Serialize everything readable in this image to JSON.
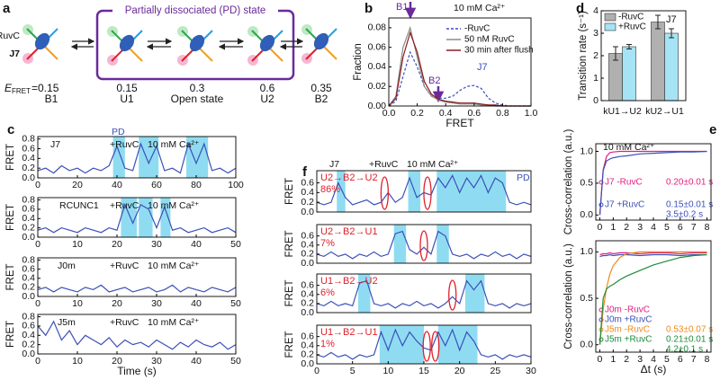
{
  "diagram": {
    "panel": "a",
    "title": "Partially dissociated (PD) state",
    "protein": "RuvC",
    "junction": "J7",
    "energy_symbol": "E",
    "energy_subscript": "FRET",
    "states": [
      {
        "efret": "=0.15",
        "name": "B1"
      },
      {
        "efret": "0.15",
        "name": "U1"
      },
      {
        "efret": "0.3",
        "name": "Open state"
      },
      {
        "efret": "0.6",
        "name": "U2"
      },
      {
        "efret": "0.35",
        "name": "B2"
      }
    ]
  },
  "chart_data": [
    {
      "type": "line",
      "panel": "b",
      "buffer": "10 mM Ca²⁺",
      "annotations": [
        "B1",
        "B2",
        "J7"
      ],
      "xlabel": "FRET",
      "ylabel": "Fraction",
      "x": [
        0,
        0.05,
        0.1,
        0.15,
        0.2,
        0.25,
        0.3,
        0.35,
        0.4,
        0.45,
        0.5,
        0.55,
        0.6,
        0.65,
        0.7,
        0.75,
        0.8,
        0.85,
        0.9,
        0.95,
        1
      ],
      "series": [
        {
          "name": "-RuvC",
          "color": "#3a4fc0",
          "dash": true,
          "values": [
            0,
            0.005,
            0.03,
            0.055,
            0.04,
            0.02,
            0.01,
            0.008,
            0.008,
            0.01,
            0.016,
            0.02,
            0.021,
            0.018,
            0.008,
            0.003,
            0.001,
            0,
            0,
            0,
            0
          ]
        },
        {
          "name": "50 nM RuvC",
          "color": "#8a8a8a",
          "values": [
            0,
            0.01,
            0.06,
            0.08,
            0.05,
            0.02,
            0.01,
            0.006,
            0.004,
            0.003,
            0.002,
            0.002,
            0.002,
            0.001,
            0.001,
            0,
            0,
            0,
            0,
            0,
            0
          ]
        },
        {
          "name": "30 min after flush",
          "color": "#8b1a1a",
          "values": [
            0,
            0.008,
            0.05,
            0.075,
            0.055,
            0.025,
            0.012,
            0.007,
            0.005,
            0.004,
            0.003,
            0.003,
            0.003,
            0.002,
            0.001,
            0.001,
            0,
            0,
            0,
            0,
            0
          ]
        }
      ],
      "xlim": [
        0,
        1
      ],
      "xticks": [
        {
          "value": 0,
          "label": "0.0"
        },
        0.2,
        0.4,
        0.6,
        0.8,
        {
          "value": 1,
          "label": "1.0"
        }
      ],
      "ylim": [
        0,
        0.09
      ],
      "yticks": [
        {
          "value": 0,
          "label": "0.00"
        },
        0.02,
        0.04,
        0.06,
        0.08
      ]
    },
    {
      "type": "bar",
      "panel": "d",
      "annotations": [
        "J7"
      ],
      "ylabel": "Transition rate (s⁻¹)",
      "categories": [
        "kU1→U2",
        "kU2→U1"
      ],
      "series": [
        {
          "name": "-RuvC",
          "color": "#b0b0b0",
          "values": [
            2.1,
            3.5
          ],
          "errors": [
            0.3,
            0.3
          ]
        },
        {
          "name": "+RuvC",
          "color": "#a6e3f5",
          "values": [
            2.4,
            3.0
          ],
          "errors": [
            0.1,
            0.2
          ]
        }
      ],
      "ylim": [
        0,
        4
      ],
      "yticks": [
        0,
        1,
        2,
        3,
        4
      ]
    },
    {
      "type": "line",
      "panel": "c",
      "title": "J7",
      "condition": "+RuvC",
      "buffer": "10 mM Ca²⁺",
      "pd_label": "PD",
      "ylabel": "FRET",
      "x": [
        0,
        4,
        8,
        12,
        16,
        20,
        24,
        28,
        32,
        36,
        40,
        44,
        48,
        52,
        56,
        60,
        64,
        68,
        72,
        76,
        80,
        84,
        88,
        92,
        96,
        100
      ],
      "series": [
        {
          "color": "#3b4fb8",
          "values": [
            0.15,
            0.2,
            0.1,
            0.25,
            0.15,
            0.2,
            0.1,
            0.2,
            0.15,
            0.25,
            0.65,
            0.2,
            0.15,
            0.7,
            0.3,
            0.65,
            0.15,
            0.2,
            0.1,
            0.7,
            0.3,
            0.7,
            0.15,
            0.2,
            0.1,
            0.2
          ]
        }
      ],
      "shaded": [
        [
          38,
          44
        ],
        [
          51,
          61
        ],
        [
          75,
          86
        ]
      ],
      "xlim": [
        0,
        100
      ],
      "xticks": [
        0,
        20,
        40,
        60,
        80,
        100
      ],
      "ylim": [
        0,
        0.85
      ],
      "yticks": [
        {
          "value": 0,
          "label": "0.0"
        },
        0.2,
        0.4,
        0.6,
        0.8
      ]
    },
    {
      "type": "line",
      "title": "RCUNC1",
      "condition": "+RuvC",
      "buffer": "10 mM Ca²⁺",
      "ylabel": "FRET",
      "x": [
        0,
        2,
        4,
        6,
        8,
        10,
        12,
        14,
        16,
        18,
        20,
        22,
        24,
        26,
        28,
        30,
        32,
        34,
        36,
        38,
        40,
        42,
        44,
        46,
        48,
        50
      ],
      "series": [
        {
          "color": "#3b4fb8",
          "values": [
            0.15,
            0.2,
            0.1,
            0.2,
            0.15,
            0.1,
            0.2,
            0.15,
            0.1,
            0.2,
            0.15,
            0.7,
            0.3,
            0.7,
            0.6,
            0.2,
            0.65,
            0.15,
            0.2,
            0.1,
            0.15,
            0.2,
            0.1,
            0.15,
            0.2,
            0.1
          ]
        }
      ],
      "shaded": [
        [
          21,
          25
        ],
        [
          25.5,
          29
        ],
        [
          31,
          33.5
        ]
      ],
      "xlim": [
        0,
        50
      ],
      "xticks": [
        0,
        10,
        20,
        30,
        40,
        50
      ],
      "ylim": [
        0,
        0.85
      ],
      "yticks": [
        {
          "value": 0,
          "label": "0.0"
        },
        0.2,
        0.4,
        0.6,
        0.8
      ]
    },
    {
      "type": "line",
      "title": "J0m",
      "condition": "+RuvC",
      "buffer": "10 mM Ca²⁺",
      "ylabel": "FRET",
      "x": [
        0,
        2,
        4,
        6,
        8,
        10,
        12,
        14,
        16,
        18,
        20,
        22,
        24,
        26,
        28,
        30,
        32,
        34,
        36,
        38,
        40,
        42,
        44,
        46,
        48,
        50
      ],
      "series": [
        {
          "color": "#3b4fb8",
          "values": [
            0.15,
            0.2,
            0.1,
            0.2,
            0.15,
            0.1,
            0.2,
            0.15,
            0.25,
            0.1,
            0.15,
            0.2,
            0.1,
            0.15,
            0.2,
            0.1,
            0.15,
            0.25,
            0.1,
            0.2,
            0.15,
            0.1,
            0.2,
            0.15,
            0.1,
            0.2
          ]
        }
      ],
      "xlim": [
        0,
        50
      ],
      "xticks": [
        0,
        10,
        20,
        30,
        40,
        50
      ],
      "ylim": [
        0,
        0.85
      ],
      "yticks": [
        {
          "value": 0,
          "label": "0.0"
        },
        0.2,
        0.4,
        0.6,
        0.8
      ]
    },
    {
      "type": "line",
      "title": "J5m",
      "condition": "+RuvC",
      "buffer": "10 mM Ca²⁺",
      "ylabel": "FRET",
      "xlabel": "Time (s)",
      "x": [
        0,
        2,
        4,
        6,
        8,
        10,
        12,
        14,
        16,
        18,
        20,
        22,
        24,
        26,
        28,
        30,
        32,
        34,
        36,
        38,
        40,
        42,
        44,
        46,
        48,
        50
      ],
      "series": [
        {
          "color": "#3b4fb8",
          "values": [
            0.6,
            0.4,
            0.7,
            0.3,
            0.5,
            0.2,
            0.4,
            0.3,
            0.2,
            0.35,
            0.15,
            0.3,
            0.2,
            0.25,
            0.15,
            0.3,
            0.2,
            0.1,
            0.25,
            0.15,
            0.3,
            0.2,
            0.15,
            0.25,
            0.1,
            0.2
          ]
        }
      ],
      "xlim": [
        0,
        50
      ],
      "xticks": [
        0,
        10,
        20,
        30,
        40,
        50
      ],
      "ylim": [
        0,
        0.85
      ],
      "yticks": [
        {
          "value": 0,
          "label": "0.0"
        },
        0.2,
        0.4,
        0.6,
        0.8
      ]
    },
    {
      "type": "line",
      "panel": "f",
      "title": "J7",
      "condition": "+RuvC",
      "buffer": "10 mM Ca²⁺",
      "pd_label": "PD",
      "pathway": "U2→B2→U2",
      "percent": "86%",
      "ylabel": "FRET",
      "x": [
        0,
        1,
        2,
        3,
        4,
        5,
        6,
        7,
        8,
        9,
        10,
        11,
        12,
        13,
        14,
        15,
        16,
        17,
        18,
        19,
        20,
        21,
        22,
        23,
        24,
        25,
        26,
        27,
        28,
        29,
        30
      ],
      "series": [
        {
          "color": "#3b4fb8",
          "values": [
            0.2,
            0.15,
            0.2,
            0.6,
            0.3,
            0.15,
            0.2,
            0.25,
            0.15,
            0.2,
            0.4,
            0.2,
            0.3,
            0.7,
            0.3,
            0.4,
            0.35,
            0.7,
            0.5,
            0.75,
            0.4,
            0.7,
            0.5,
            0.75,
            0.4,
            0.7,
            0.6,
            0.2,
            0.15,
            0.2,
            0.15
          ]
        }
      ],
      "shaded": [
        [
          2.8,
          4
        ],
        [
          12.8,
          14.5
        ],
        [
          16.8,
          26.5
        ]
      ],
      "transitions": [
        9.5,
        15.5
      ],
      "xlim": [
        0,
        30
      ],
      "ylim": [
        0,
        0.85
      ],
      "yticks": [
        {
          "value": 0,
          "label": "0.0"
        },
        0.2,
        0.4,
        0.6
      ]
    },
    {
      "type": "line",
      "pathway": "U2→B2→U1",
      "percent": "7%",
      "ylabel": "FRET",
      "x": [
        0,
        1,
        2,
        3,
        4,
        5,
        6,
        7,
        8,
        9,
        10,
        11,
        12,
        13,
        14,
        15,
        16,
        17,
        18,
        19,
        20,
        21,
        22,
        23,
        24,
        25,
        26,
        27,
        28,
        29,
        30
      ],
      "series": [
        {
          "color": "#3b4fb8",
          "values": [
            0.2,
            0.15,
            0.25,
            0.15,
            0.2,
            0.1,
            0.2,
            0.15,
            0.25,
            0.15,
            0.2,
            0.65,
            0.7,
            0.3,
            0.2,
            0.35,
            0.2,
            0.7,
            0.6,
            0.2,
            0.15,
            0.2,
            0.1,
            0.2,
            0.15,
            0.25,
            0.15,
            0.2,
            0.1,
            0.2,
            0.15
          ]
        }
      ],
      "shaded": [
        [
          10.8,
          12.5
        ],
        [
          16.8,
          18.5
        ]
      ],
      "transitions": [
        15
      ],
      "xlim": [
        0,
        30
      ],
      "ylim": [
        0,
        0.85
      ],
      "yticks": [
        {
          "value": 0,
          "label": "0.0"
        },
        0.2,
        0.4,
        0.6
      ]
    },
    {
      "type": "line",
      "pathway": "U1→B2→U2",
      "percent": "6%",
      "ylabel": "FRET",
      "x": [
        0,
        1,
        2,
        3,
        4,
        5,
        6,
        7,
        8,
        9,
        10,
        11,
        12,
        13,
        14,
        15,
        16,
        17,
        18,
        19,
        20,
        21,
        22,
        23,
        24,
        25,
        26,
        27,
        28,
        29,
        30
      ],
      "series": [
        {
          "color": "#3b4fb8",
          "values": [
            0.2,
            0.15,
            0.25,
            0.15,
            0.2,
            0.15,
            0.65,
            0.7,
            0.2,
            0.15,
            0.2,
            0.1,
            0.2,
            0.15,
            0.25,
            0.15,
            0.2,
            0.1,
            0.2,
            0.35,
            0.2,
            0.7,
            0.5,
            0.7,
            0.2,
            0.15,
            0.2,
            0.1,
            0.2,
            0.15,
            0.2
          ]
        }
      ],
      "shaded": [
        [
          5.8,
          7.5
        ],
        [
          20.8,
          23.5
        ]
      ],
      "transitions": [
        19
      ],
      "xlim": [
        0,
        30
      ],
      "ylim": [
        0,
        0.85
      ],
      "yticks": [
        {
          "value": 0,
          "label": "0.0"
        },
        0.2,
        0.4,
        0.6
      ]
    },
    {
      "type": "line",
      "pathway": "U1→B2→U1",
      "percent": "1%",
      "ylabel": "FRET",
      "x": [
        0,
        1,
        2,
        3,
        4,
        5,
        6,
        7,
        8,
        9,
        10,
        11,
        12,
        13,
        14,
        15,
        16,
        17,
        18,
        19,
        20,
        21,
        22,
        23,
        24,
        25,
        26,
        27,
        28,
        29,
        30
      ],
      "series": [
        {
          "color": "#3b4fb8",
          "values": [
            0.2,
            0.15,
            0.25,
            0.15,
            0.2,
            0.1,
            0.2,
            0.15,
            0.2,
            0.7,
            0.3,
            0.75,
            0.4,
            0.7,
            0.5,
            0.35,
            0.3,
            0.7,
            0.4,
            0.75,
            0.3,
            0.7,
            0.5,
            0.2,
            0.15,
            0.2,
            0.1,
            0.2,
            0.15,
            0.2,
            0.15
          ]
        }
      ],
      "shaded": [
        [
          8.8,
          15
        ],
        [
          17,
          22.5
        ]
      ],
      "transitions": [
        15.4,
        16.6
      ],
      "xlim": [
        0,
        30
      ],
      "xticks": [
        0,
        5,
        10,
        15,
        20,
        25,
        30
      ],
      "ylim": [
        0,
        0.85
      ],
      "yticks": [
        {
          "value": 0,
          "label": "0.0"
        },
        0.2,
        0.4,
        0.6
      ]
    },
    {
      "type": "line",
      "panel": "e",
      "buffer": "10 mM Ca²⁺",
      "ylabel": "Cross-correlation (a.u.)",
      "x": [
        0,
        0.25,
        0.5,
        0.75,
        1,
        1.5,
        2,
        3,
        4,
        5,
        6,
        7,
        8
      ],
      "series": [
        {
          "name": "J7 -RuvC",
          "color": "#e0207f",
          "notes": [
            "0.20±0.01 s"
          ],
          "values": [
            0,
            0.71,
            0.92,
            0.98,
            0.99,
            1,
            1,
            1,
            1,
            1,
            1,
            1,
            1
          ]
        },
        {
          "name": "J7 +RuvC",
          "color": "#3b4fb8",
          "notes": [
            "0.15±0.01 s",
            "3.5±0.2 s"
          ],
          "values": [
            0,
            0.7,
            0.85,
            0.88,
            0.9,
            0.92,
            0.93,
            0.96,
            0.97,
            0.98,
            0.99,
            0.99,
            1
          ]
        }
      ],
      "xlim": [
        -0.3,
        8.3
      ],
      "xticks": [
        0,
        1,
        2,
        3,
        4,
        5,
        6,
        7,
        8
      ],
      "ylim": [
        -0.08,
        1.12
      ],
      "yticks": [
        {
          "value": 0,
          "label": "0.0"
        },
        0.5,
        {
          "value": 1,
          "label": "1.0"
        }
      ]
    },
    {
      "type": "line",
      "ylabel": "Cross-correlation (a.u.)",
      "xlabel": "Δt (s)",
      "x": [
        0,
        0.25,
        0.5,
        0.75,
        1,
        1.5,
        2,
        3,
        4,
        5,
        6,
        7,
        8
      ],
      "series": [
        {
          "name": "J0m -RuvC",
          "color": "#e0207f",
          "values": [
            0.97,
            0.98,
            0.98,
            0.99,
            0.98,
            0.99,
            0.99,
            0.98,
            0.99,
            0.99,
            0.98,
            0.99,
            0.99
          ]
        },
        {
          "name": "J0m +RuvC",
          "color": "#3b4fb8",
          "values": [
            0.95,
            0.96,
            0.96,
            0.97,
            0.96,
            0.97,
            0.97,
            0.96,
            0.97,
            0.97,
            0.96,
            0.97,
            0.97
          ]
        },
        {
          "name": "J5m -RuvC",
          "color": "#f08a1c",
          "notes": [
            "0.53±0.07 s"
          ],
          "values": [
            0,
            0.38,
            0.61,
            0.76,
            0.85,
            0.94,
            0.98,
            1,
            1,
            1,
            1,
            1,
            1
          ]
        },
        {
          "name": "J5m +RuvC",
          "color": "#1f8a3a",
          "notes": [
            "0.21±0.01 s",
            "4.2±0.1 s"
          ],
          "values": [
            0,
            0.5,
            0.6,
            0.63,
            0.65,
            0.7,
            0.74,
            0.8,
            0.86,
            0.9,
            0.94,
            0.96,
            0.97
          ]
        }
      ],
      "xlim": [
        -0.3,
        8.3
      ],
      "xticks": [
        0,
        1,
        2,
        3,
        4,
        5,
        6,
        7,
        8
      ],
      "ylim": [
        -0.08,
        1.12
      ],
      "yticks": [
        {
          "value": 0,
          "label": "0.0"
        },
        0.5,
        {
          "value": 1,
          "label": "1.0"
        }
      ]
    }
  ]
}
